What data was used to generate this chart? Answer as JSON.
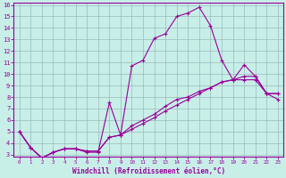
{
  "xlabel": "Windchill (Refroidissement éolien,°C)",
  "xlim": [
    -0.5,
    23.5
  ],
  "ylim": [
    2.8,
    16.2
  ],
  "xticks": [
    0,
    1,
    2,
    3,
    4,
    5,
    6,
    7,
    8,
    9,
    10,
    11,
    12,
    13,
    14,
    15,
    16,
    17,
    18,
    19,
    20,
    21,
    22,
    23
  ],
  "yticks": [
    3,
    4,
    5,
    6,
    7,
    8,
    9,
    10,
    11,
    12,
    13,
    14,
    15,
    16
  ],
  "bg_color": "#c8eee8",
  "line_color": "#990099",
  "grid_color": "#99bbbb",
  "series1_x": [
    0,
    1,
    2,
    3,
    4,
    5,
    6,
    7,
    8,
    9,
    10,
    11,
    12,
    13,
    14,
    15,
    16,
    17,
    18,
    19,
    20,
    21,
    22,
    23
  ],
  "series1_y": [
    5.0,
    3.6,
    2.7,
    3.2,
    3.5,
    3.5,
    3.2,
    3.2,
    7.5,
    4.7,
    10.7,
    11.2,
    13.1,
    13.5,
    15.0,
    15.3,
    15.8,
    14.2,
    11.2,
    9.5,
    10.8,
    9.8,
    8.3,
    8.3
  ],
  "series2_x": [
    0,
    1,
    2,
    3,
    4,
    5,
    6,
    7,
    8,
    9,
    10,
    11,
    12,
    13,
    14,
    15,
    16,
    17,
    18,
    19,
    20,
    21,
    22,
    23
  ],
  "series2_y": [
    5.0,
    3.6,
    2.7,
    3.2,
    3.5,
    3.5,
    3.3,
    3.3,
    4.5,
    4.7,
    5.2,
    5.7,
    6.2,
    6.8,
    7.3,
    7.8,
    8.3,
    8.8,
    9.3,
    9.5,
    9.5,
    9.5,
    8.3,
    8.3
  ],
  "series3_x": [
    0,
    1,
    2,
    3,
    4,
    5,
    6,
    7,
    8,
    9,
    10,
    11,
    12,
    13,
    14,
    15,
    16,
    17,
    18,
    19,
    20,
    21,
    22,
    23
  ],
  "series3_y": [
    5.0,
    3.6,
    2.7,
    3.2,
    3.5,
    3.5,
    3.3,
    3.3,
    4.5,
    4.7,
    5.5,
    6.0,
    6.5,
    7.2,
    7.8,
    8.0,
    8.5,
    8.8,
    9.3,
    9.5,
    9.8,
    9.8,
    8.3,
    7.8
  ]
}
